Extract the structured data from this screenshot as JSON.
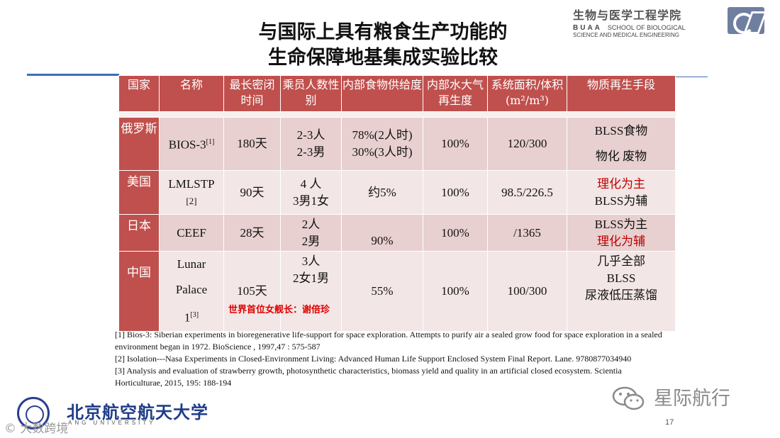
{
  "title": {
    "line1": "与国际上具有粮食生产功能的",
    "line2": "生命保障地基集成实验比较"
  },
  "logo": {
    "cn": "生物与医学工程学院",
    "en_buaa": "BUAA",
    "en1": "SCHOOL OF BIOLOGICAL",
    "en2": "SCIENCE AND MEDICAL ENGINEERING"
  },
  "table": {
    "headers": [
      "国家",
      "名称",
      "最长密闭时间",
      "乘员人数性别",
      "内部食物供给度",
      "内部水大气再生度",
      "系统面积/体积(m²/m³)",
      "物质再生手段"
    ],
    "rows": [
      {
        "country": "俄罗斯",
        "name": "BIOS-3",
        "name_ref": "[1]",
        "duration": "180天",
        "crew_1": "2-3人",
        "crew_2": "2-3男",
        "food_1": "78%(2人时)",
        "food_2": "30%(3人时)",
        "water": "100%",
        "area": "120/300",
        "means_1": "BLSS食物",
        "means_2": "物化 废物"
      },
      {
        "country": "美国",
        "name": "LMLSTP",
        "name_ref": "[2]",
        "duration": "90天",
        "crew_1": "4 人",
        "crew_2": "3男1女",
        "food": "约5%",
        "water": "100%",
        "area": "98.5/226.5",
        "means_1": "理化为主",
        "means_2": "BLSS为辅"
      },
      {
        "country": "日本",
        "name": "CEEF",
        "duration": "28天",
        "crew_1": "2人",
        "crew_2": "2男",
        "food": "90%",
        "water": "100%",
        "area": "/1365",
        "means_1": "BLSS为主",
        "means_2": "理化为辅"
      },
      {
        "country": "中国",
        "name_1": "Lunar",
        "name_2": "Palace",
        "name_3": "1",
        "name_ref": "[3]",
        "duration": "105天",
        "crew_1": "3人",
        "crew_2": "2女1男",
        "food": "55%",
        "water": "100%",
        "area": "100/300",
        "means_1": "几乎全部",
        "means_2": "BLSS",
        "means_3": "尿液低压蒸馏",
        "note": "世界首位女舰长：谢倍珍"
      }
    ]
  },
  "references": [
    "[1] Bios-3: Siberian experiments in bioregenerative life-support for space exploration. Attempts to purify air a sealed grow food for space exploration in a sealed environment began in 1972.  BioScience , 1997,47 : 575-587",
    "[2] Isolation---Nasa Experiments in Closed-Environment Living: Advanced Human Life Support Enclosed System Final Report. Lane. 9780877034940",
    "[3] Analysis and evaluation of strawberry growth, photosynthetic characteristics, biomass yield and quality in an artificial closed ecosystem. Scientia Horticulturae, 2015, 195: 188-194"
  ],
  "footer": {
    "university_cn": "北京航空航天大学",
    "university_en": "ANG UNIVERSITY",
    "watermark_left": "© 大数跨境",
    "watermark_right": "星际航行",
    "page_number": "17"
  },
  "colors": {
    "header_red": "#c0504d",
    "row_pink": "#e8d0d0",
    "row_light": "#f3e6e6",
    "accent_blue": "#3a6fb7",
    "text_red": "#c00000",
    "text_blue": "#1f3c88"
  }
}
